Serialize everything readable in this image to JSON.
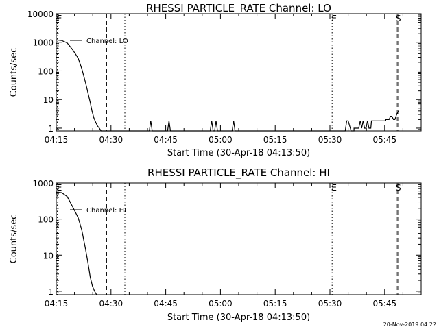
{
  "footer_timestamp": "20-Nov-2019 04:22",
  "chart_data": [
    {
      "type": "line",
      "title": "RHESSI PARTICLE_RATE Channel: LO",
      "xlabel": "Start Time (30-Apr-18 04:13:50)",
      "ylabel": "Counts/sec",
      "yscale": "log",
      "ylim": [
        0.8,
        10000
      ],
      "xlim": [
        0,
        100
      ],
      "x_units": "minutes after 04:15",
      "x_ticks": [
        {
          "x": 0,
          "label": "04:15"
        },
        {
          "x": 15,
          "label": "04:30"
        },
        {
          "x": 30,
          "label": "04:45"
        },
        {
          "x": 45,
          "label": "05:00"
        },
        {
          "x": 60,
          "label": "05:15"
        },
        {
          "x": 75,
          "label": "05:30"
        },
        {
          "x": 90,
          "label": "05:45"
        }
      ],
      "y_ticks": [
        {
          "y": 1,
          "label": "1"
        },
        {
          "y": 10,
          "label": "10"
        },
        {
          "y": 100,
          "label": "100"
        },
        {
          "y": 1000,
          "label": "1000"
        },
        {
          "y": 10000,
          "label": "10000"
        }
      ],
      "legend": {
        "label": "Channel: LO",
        "position": "top-left"
      },
      "markers": [
        {
          "x": 0.3,
          "label": "E",
          "style": "dotted"
        },
        {
          "x": 13.8,
          "label": "",
          "style": "dashed"
        },
        {
          "x": 18.8,
          "label": "",
          "style": "dotted"
        },
        {
          "x": 75.6,
          "label": "E",
          "style": "dotted"
        },
        {
          "x": 93.2,
          "label": "S",
          "style": "dashed"
        },
        {
          "x": 93.6,
          "label": "",
          "style": "dashed"
        }
      ],
      "series": [
        {
          "name": "Channel: LO",
          "x": [
            0,
            1.5,
            3,
            4.5,
            6,
            7,
            8,
            8.8,
            9.3,
            9.8,
            10.3,
            10.8,
            11.3,
            11.8,
            12.3,
            12.6,
            12.8,
            25.5,
            25.9,
            26.3,
            30.5,
            30.9,
            31.3,
            42.2,
            42.6,
            43.0,
            43.4,
            43.8,
            44.2,
            48.2,
            48.6,
            49.0,
            79.2,
            79.6,
            80.0,
            80.8,
            81.6,
            81.6,
            82.9,
            83.3,
            83.7,
            84.1,
            84.5,
            84.9,
            85.3,
            85.7,
            86.2,
            86.4,
            88.0,
            88.0,
            90.3,
            90.3,
            91.2,
            91.6,
            92.0,
            92.4,
            92.8,
            93.2,
            93.4,
            93.8
          ],
          "y": [
            1200,
            1150,
            950,
            550,
            280,
            120,
            40,
            15,
            8,
            4,
            2.3,
            1.6,
            1.2,
            1,
            0.8,
            0.8,
            0.8,
            0.8,
            1.8,
            0.8,
            0.8,
            1.8,
            0.8,
            0.8,
            1.8,
            0.8,
            0.8,
            1.8,
            0.8,
            0.8,
            1.8,
            0.8,
            0.8,
            1.8,
            1.8,
            0.8,
            0.8,
            1.0,
            1.0,
            1.8,
            1.0,
            1.8,
            1.0,
            1.0,
            1.8,
            1.0,
            1.0,
            1.8,
            1.8,
            1.8,
            1.8,
            2.0,
            2.0,
            2.6,
            2.6,
            2.0,
            2.0,
            2.8,
            3.2,
            4.0
          ]
        }
      ]
    },
    {
      "type": "line",
      "title": "RHESSI PARTICLE_RATE Channel: HI",
      "xlabel": "Start Time (30-Apr-18 04:13:50)",
      "ylabel": "Counts/sec",
      "yscale": "log",
      "ylim": [
        0.8,
        1000
      ],
      "xlim": [
        0,
        100
      ],
      "x_units": "minutes after 04:15",
      "x_ticks": [
        {
          "x": 0,
          "label": "04:15"
        },
        {
          "x": 15,
          "label": "04:30"
        },
        {
          "x": 30,
          "label": "04:45"
        },
        {
          "x": 45,
          "label": "05:00"
        },
        {
          "x": 60,
          "label": "05:15"
        },
        {
          "x": 75,
          "label": "05:30"
        },
        {
          "x": 90,
          "label": "05:45"
        }
      ],
      "y_ticks": [
        {
          "y": 1,
          "label": "1"
        },
        {
          "y": 10,
          "label": "10"
        },
        {
          "y": 100,
          "label": "100"
        },
        {
          "y": 1000,
          "label": "1000"
        }
      ],
      "legend": {
        "label": "Channel: HI",
        "position": "top-left"
      },
      "markers": [
        {
          "x": 0.3,
          "label": "E",
          "style": "dotted"
        },
        {
          "x": 13.8,
          "label": "",
          "style": "dashed"
        },
        {
          "x": 18.8,
          "label": "",
          "style": "dotted"
        },
        {
          "x": 75.6,
          "label": "E",
          "style": "dotted"
        },
        {
          "x": 93.2,
          "label": "S",
          "style": "dashed"
        },
        {
          "x": 93.6,
          "label": "",
          "style": "dashed"
        }
      ],
      "series": [
        {
          "name": "Channel: HI",
          "x": [
            0,
            1.5,
            3,
            4.5,
            6,
            7,
            8,
            8.7,
            9.3,
            9.9,
            10.5,
            10.9,
            11.1
          ],
          "y": [
            560,
            540,
            420,
            220,
            110,
            50,
            15,
            6,
            2.5,
            1.4,
            1.0,
            0.85,
            0.8
          ]
        }
      ]
    }
  ]
}
